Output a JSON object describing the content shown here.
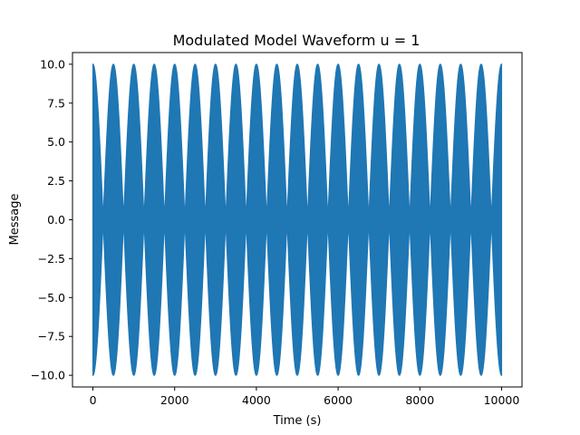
{
  "chart_data": {
    "type": "line",
    "title": "Modulated Model Waveform u = 1",
    "xlabel": "Time (s)",
    "ylabel": "Message",
    "xlim": [
      -500,
      10500
    ],
    "ylim": [
      -10.75,
      10.75
    ],
    "xticks": [
      0,
      2000,
      4000,
      6000,
      8000,
      10000
    ],
    "xtick_labels": [
      "0",
      "2000",
      "4000",
      "6000",
      "8000",
      "10000"
    ],
    "yticks": [
      -10,
      -7.5,
      -5,
      -2.5,
      0,
      2.5,
      5,
      7.5,
      10
    ],
    "ytick_labels": [
      "−10.0",
      "−7.5",
      "−5.0",
      "−2.5",
      "0.0",
      "2.5",
      "5.0",
      "7.5",
      "10.0"
    ],
    "grid": false,
    "series": [
      {
        "color": "#1f77b4",
        "x_range": [
          0,
          10000
        ],
        "amplitude": 10,
        "modulation_index": 1,
        "envelope_peak_times": [
          0,
          500,
          1000,
          1500,
          2000,
          2500,
          3000,
          3500,
          4000,
          4500,
          5000,
          5500,
          6000,
          6500,
          7000,
          7500,
          8000,
          8500,
          9000,
          9500,
          10000
        ],
        "envelope_min": 0,
        "envelope_max": 10,
        "carrier_cycles_visible": "dense"
      }
    ]
  }
}
